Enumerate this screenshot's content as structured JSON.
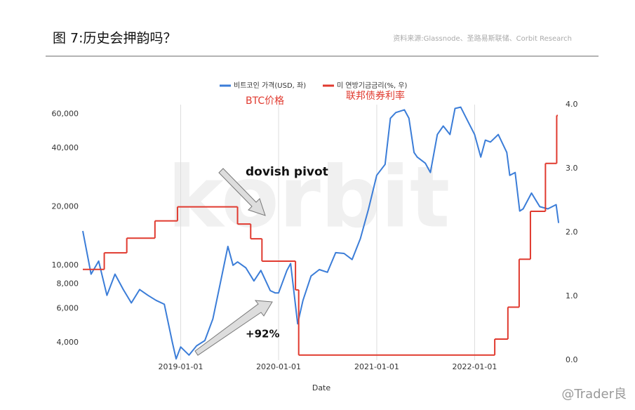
{
  "header": {
    "title": "图 7:历史会押韵吗？",
    "source": "资料来源:Glassnode、圣路易斯联储、Corbit Research"
  },
  "chart_data": {
    "type": "line",
    "x_label": "Date",
    "watermark": "korbit",
    "annotations": [
      "BTC价格",
      "联邦债券利率",
      "dovish pivot",
      "+92%"
    ],
    "xlim": [
      "2018-01-01",
      "2022-11-15"
    ],
    "xticks": [
      "2019-01-01",
      "2020-01-01",
      "2021-01-01",
      "2022-01-01"
    ],
    "ylim": [
      3250,
      67000
    ],
    "log_y": true,
    "yticks": [
      {
        "value": 4000,
        "label": "4,000"
      },
      {
        "value": 6000,
        "label": "6,000"
      },
      {
        "value": 8000,
        "label": "8,000"
      },
      {
        "value": 10000,
        "label": "10,000"
      },
      {
        "value": 20000,
        "label": "20,000"
      },
      {
        "value": 40000,
        "label": "40,000"
      },
      {
        "value": 60000,
        "label": "60,000"
      }
    ],
    "y2lim": [
      0,
      4
    ],
    "y2ticks": [
      {
        "value": 0,
        "label": "0.0"
      },
      {
        "value": 1,
        "label": "1.0"
      },
      {
        "value": 2,
        "label": "2.0"
      },
      {
        "value": 3,
        "label": "3.0"
      },
      {
        "value": 4,
        "label": "4.0"
      }
    ],
    "grid": "x",
    "series": [
      {
        "name": "비트코인 가격(USD, 좌)",
        "color": "#3b7dd8",
        "x": [
          "2018-01-01",
          "2018-02-01",
          "2018-03-01",
          "2018-04-01",
          "2018-05-01",
          "2018-06-01",
          "2018-07-01",
          "2018-08-01",
          "2018-09-01",
          "2018-10-01",
          "2018-11-01",
          "2018-12-01",
          "2018-12-15",
          "2019-01-01",
          "2019-02-01",
          "2019-03-01",
          "2019-04-01",
          "2019-05-01",
          "2019-06-01",
          "2019-06-26",
          "2019-07-15",
          "2019-08-01",
          "2019-09-01",
          "2019-10-01",
          "2019-10-27",
          "2019-12-01",
          "2019-12-20",
          "2020-01-01",
          "2020-02-01",
          "2020-02-15",
          "2020-03-12",
          "2020-04-01",
          "2020-05-01",
          "2020-06-01",
          "2020-07-01",
          "2020-08-01",
          "2020-09-01",
          "2020-10-01",
          "2020-11-01",
          "2020-12-01",
          "2021-01-01",
          "2021-02-01",
          "2021-02-21",
          "2021-03-13",
          "2021-04-14",
          "2021-05-01",
          "2021-05-20",
          "2021-06-01",
          "2021-07-01",
          "2021-07-20",
          "2021-08-15",
          "2021-09-06",
          "2021-10-01",
          "2021-10-20",
          "2021-11-10",
          "2021-12-01",
          "2022-01-01",
          "2022-01-24",
          "2022-02-10",
          "2022-03-01",
          "2022-03-30",
          "2022-05-01",
          "2022-05-12",
          "2022-06-01",
          "2022-06-18",
          "2022-07-01",
          "2022-08-01",
          "2022-09-01",
          "2022-10-01",
          "2022-11-01",
          "2022-11-10"
        ],
        "values": [
          15000,
          9000,
          10500,
          7000,
          9000,
          7500,
          6400,
          7500,
          7000,
          6600,
          6300,
          4000,
          3300,
          3800,
          3450,
          3850,
          4100,
          5300,
          8500,
          12500,
          10000,
          10400,
          9700,
          8300,
          9400,
          7400,
          7200,
          7200,
          9400,
          10200,
          5000,
          6600,
          8800,
          9500,
          9200,
          11600,
          11500,
          10700,
          13700,
          19400,
          29000,
          33000,
          57000,
          61000,
          63000,
          57000,
          38000,
          36000,
          33500,
          30000,
          47000,
          52000,
          47000,
          64000,
          65000,
          57000,
          47000,
          36000,
          44000,
          43000,
          47000,
          38000,
          29000,
          30000,
          19000,
          19500,
          23500,
          20000,
          19500,
          20500,
          16500
        ]
      },
      {
        "name": "미 연방기금금리(%, 우)",
        "color": "#e03a2f",
        "axis": "y2",
        "x": [
          "2018-01-01",
          "2018-03-22",
          "2018-06-14",
          "2018-09-27",
          "2018-12-20",
          "2019-08-01",
          "2019-09-19",
          "2019-10-31",
          "2020-03-04",
          "2020-03-16",
          "2022-03-17",
          "2022-05-05",
          "2022-06-16",
          "2022-07-28",
          "2022-09-22",
          "2022-11-03"
        ],
        "values": [
          1.42,
          1.68,
          1.91,
          2.18,
          2.4,
          2.13,
          1.9,
          1.55,
          1.1,
          0.08,
          0.33,
          0.83,
          1.58,
          2.33,
          3.08,
          3.83
        ]
      }
    ]
  },
  "footer": {
    "watermark": "@Trader良"
  }
}
